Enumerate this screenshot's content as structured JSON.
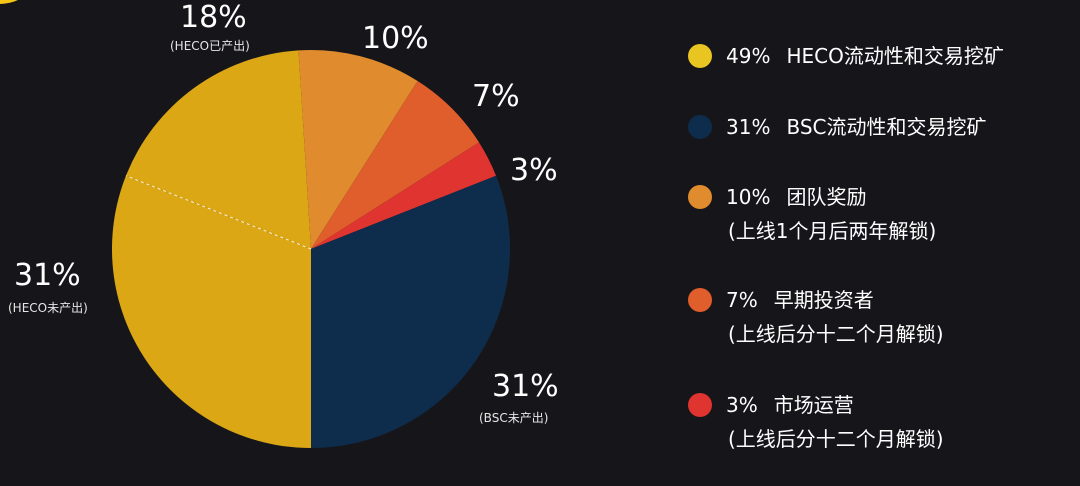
{
  "chart_data": {
    "type": "pie",
    "title": "",
    "slices": [
      {
        "label": "HECO未产出",
        "value": 31,
        "color": "#dba715",
        "pct_label": "31%",
        "sub_label": "(HECO未产出)"
      },
      {
        "label": "HECO已产出",
        "value": 18,
        "color": "#dba715",
        "pct_label": "18%",
        "sub_label": "(HECO已产出)"
      },
      {
        "label": "团队奖励",
        "value": 10,
        "color": "#e08b2d",
        "pct_label": "10%"
      },
      {
        "label": "早期投资者",
        "value": 7,
        "color": "#e05d2c",
        "pct_label": "7%"
      },
      {
        "label": "市场运营",
        "value": 3,
        "color": "#df3430",
        "pct_label": "3%"
      },
      {
        "label": "BSC未产出",
        "value": 31,
        "color": "#0e2d4d",
        "pct_label": "31%",
        "sub_label": "(BSC未产出)"
      }
    ],
    "legend_placement": "right"
  },
  "legend": [
    {
      "pct": "49%",
      "label": "HECO流动性和交易挖矿",
      "note": "",
      "color": "#e8c521"
    },
    {
      "pct": "31%",
      "label": "BSC流动性和交易挖矿",
      "note": "",
      "color": "#0e2d4d"
    },
    {
      "pct": "10%",
      "label": "团队奖励",
      "note": "(上线1个月后两年解锁)",
      "color": "#e08b2d"
    },
    {
      "pct": "7%",
      "label": "早期投资者",
      "note": "(上线后分十二个月解锁)",
      "color": "#e05d2c"
    },
    {
      "pct": "3%",
      "label": "市场运营",
      "note": "(上线后分十二个月解锁)",
      "color": "#df3430"
    }
  ]
}
